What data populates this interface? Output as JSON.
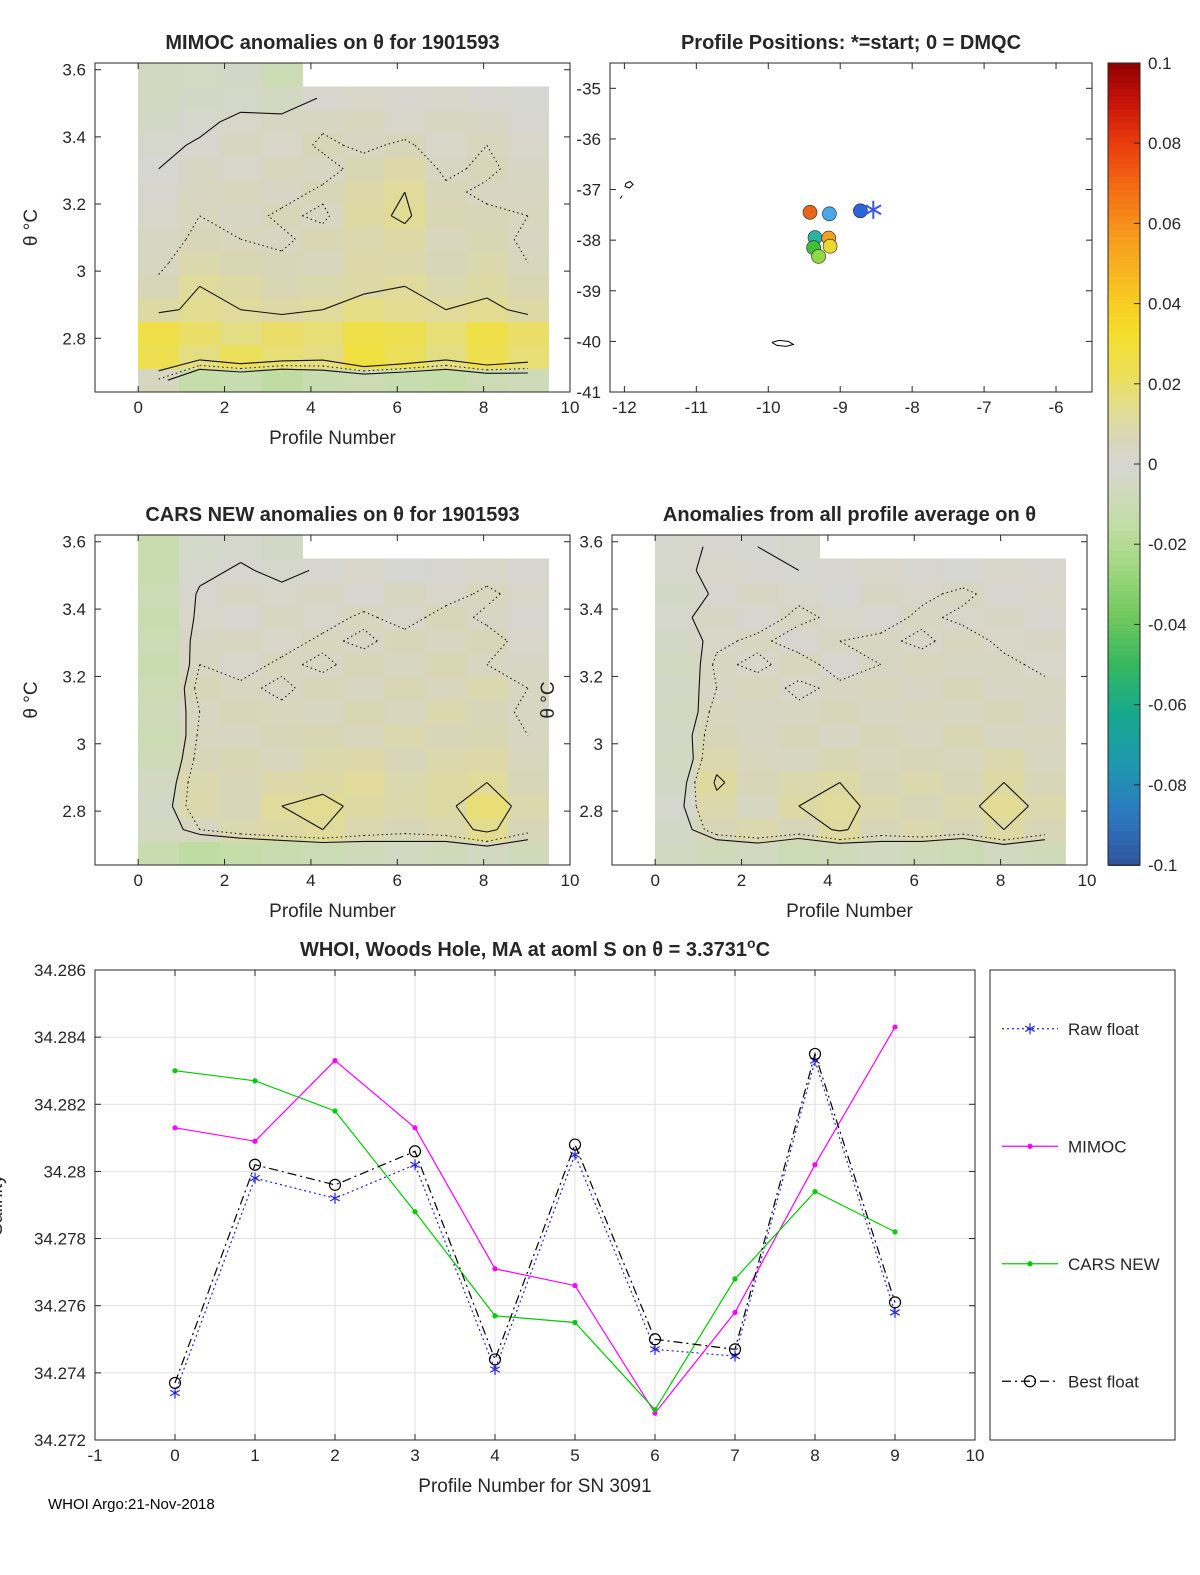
{
  "figure": {
    "footer": "WHOI Argo:21-Nov-2018",
    "background": "#ffffff"
  },
  "colormap": {
    "stops": [
      [
        -0.1,
        "#30559c"
      ],
      [
        -0.088,
        "#2d77c0"
      ],
      [
        -0.075,
        "#1f98b0"
      ],
      [
        -0.062,
        "#16a98c"
      ],
      [
        -0.05,
        "#36b75e"
      ],
      [
        -0.038,
        "#72c95e"
      ],
      [
        -0.025,
        "#a4d783"
      ],
      [
        -0.015,
        "#c2dda6"
      ],
      [
        -0.006,
        "#d2d9c0"
      ],
      [
        0.0,
        "#d6d6d2"
      ],
      [
        0.006,
        "#d8d6b8"
      ],
      [
        0.014,
        "#e2dc90"
      ],
      [
        0.022,
        "#ecdf5a"
      ],
      [
        0.032,
        "#f4df2e"
      ],
      [
        0.042,
        "#f8c822"
      ],
      [
        0.055,
        "#f8a01e"
      ],
      [
        0.068,
        "#f47014"
      ],
      [
        0.08,
        "#e83c0e"
      ],
      [
        0.09,
        "#c81408"
      ],
      [
        0.1,
        "#8e0000"
      ]
    ],
    "tick_vals": [
      0.1,
      0.08,
      0.06,
      0.04,
      0.02,
      0,
      -0.02,
      -0.04,
      -0.06,
      -0.08,
      -0.1
    ],
    "tick_labels": [
      "0.1",
      "0.08",
      "0.06",
      "0.04",
      "0.02",
      "0",
      "-0.02",
      "-0.04",
      "-0.06",
      "-0.08",
      "-0.1"
    ]
  },
  "chart_data": [
    {
      "id": "mimoc_heatmap",
      "type": "heatmap",
      "title": "MIMOC anomalies on θ  for 1901593",
      "xlabel": "Profile Number",
      "ylabel": "θ °C",
      "xlim": [
        -1,
        10
      ],
      "ylim": [
        2.64,
        3.62
      ],
      "xtick_vals": [
        0,
        2,
        4,
        6,
        8,
        10
      ],
      "xtick_labels": [
        "0",
        "2",
        "4",
        "6",
        "8",
        "10"
      ],
      "ytick_vals": [
        2.8,
        3,
        3.2,
        3.4,
        3.6
      ],
      "ytick_labels": [
        "2.8",
        "3",
        "3.2",
        "3.4",
        "3.6"
      ],
      "cell_x0": 0,
      "cell_dx": 0.95,
      "cell_y0": 2.64,
      "cell_dy": 0.07,
      "contour_levels_solid": [
        0,
        0.012
      ],
      "contour_levels_dotted": [
        0.005
      ],
      "values": [
        [
          0.004,
          -0.014,
          -0.012,
          -0.016,
          -0.012,
          -0.01,
          -0.012,
          -0.014,
          -0.01,
          -0.008
        ],
        [
          0.024,
          0.016,
          0.022,
          0.018,
          0.016,
          0.028,
          0.022,
          0.016,
          0.024,
          0.018
        ],
        [
          0.026,
          0.02,
          0.016,
          0.02,
          0.018,
          0.026,
          0.024,
          0.018,
          0.026,
          0.02
        ],
        [
          0.01,
          0.014,
          0.012,
          0.01,
          0.012,
          0.016,
          0.014,
          0.012,
          0.014,
          0.01
        ],
        [
          0.006,
          0.012,
          0.01,
          0.007,
          0.008,
          0.01,
          0.012,
          0.008,
          0.01,
          0.007
        ],
        [
          0.004,
          0.008,
          0.007,
          0.006,
          0.005,
          0.009,
          0.008,
          0.006,
          0.008,
          0.005
        ],
        [
          0.003,
          0.006,
          0.005,
          0.004,
          0.007,
          0.008,
          0.01,
          0.005,
          0.007,
          0.004
        ],
        [
          0.002,
          0.005,
          0.003,
          0.006,
          0.004,
          0.01,
          0.013,
          0.007,
          0.006,
          0.005
        ],
        [
          0.001,
          0.004,
          0.005,
          0.003,
          0.006,
          0.009,
          0.012,
          0.006,
          0.004,
          0.004
        ],
        [
          0.0,
          0.003,
          0.002,
          0.005,
          0.003,
          0.007,
          0.009,
          0.004,
          0.006,
          0.003
        ],
        [
          -0.002,
          0.001,
          0.004,
          0.002,
          0.006,
          0.004,
          0.006,
          0.002,
          0.005,
          0.002
        ],
        [
          -0.004,
          -0.002,
          0.002,
          0.003,
          0.004,
          0.005,
          0.002,
          0.004,
          0.003,
          0.001
        ],
        [
          -0.006,
          -0.004,
          -0.003,
          -0.006,
          0.001,
          0.002,
          0.001,
          0.002,
          0.001,
          0.0
        ],
        [
          -0.006,
          -0.005,
          -0.004,
          -0.01,
          null,
          null,
          null,
          null,
          null,
          null
        ]
      ]
    },
    {
      "id": "profile_map",
      "type": "scatter",
      "title": "Profile Positions: *=start; 0 = DMQC",
      "xlim": [
        -12.2,
        -5.5
      ],
      "ylim": [
        -41,
        -34.5
      ],
      "xtick_vals": [
        -12,
        -11,
        -10,
        -9,
        -8,
        -7,
        -6
      ],
      "xtick_labels": [
        "-12",
        "-11",
        "-10",
        "-9",
        "-8",
        "-7",
        "-6"
      ],
      "ytick_vals": [
        -35,
        -36,
        -37,
        -38,
        -39,
        -40,
        -41
      ],
      "ytick_labels": [
        "-35",
        "-36",
        "-37",
        "-38",
        "-39",
        "-40",
        "-41"
      ],
      "points": [
        {
          "x": -9.42,
          "y": -37.45,
          "color": "#e8641b"
        },
        {
          "x": -9.15,
          "y": -37.48,
          "color": "#49a9e8"
        },
        {
          "x": -8.72,
          "y": -37.42,
          "color": "#2a66d9"
        },
        {
          "x": -9.35,
          "y": -37.95,
          "color": "#29b3a5"
        },
        {
          "x": -9.16,
          "y": -37.96,
          "color": "#f59f1e"
        },
        {
          "x": -9.37,
          "y": -38.15,
          "color": "#3fbf3a"
        },
        {
          "x": -9.14,
          "y": -38.12,
          "color": "#e8d832"
        },
        {
          "x": -9.3,
          "y": -38.32,
          "color": "#90d944"
        }
      ],
      "start_marker": {
        "x": -8.54,
        "y": -37.4,
        "color": "#3b55e0"
      },
      "coastlines": [
        [
          [
            -11.98,
            -36.88
          ],
          [
            -11.92,
            -36.84
          ],
          [
            -11.88,
            -36.9
          ],
          [
            -11.93,
            -36.97
          ],
          [
            -11.99,
            -36.94
          ],
          [
            -11.98,
            -36.88
          ]
        ],
        [
          [
            -12.03,
            -37.12
          ],
          [
            -12.06,
            -37.18
          ]
        ],
        [
          [
            -9.95,
            -40.02
          ],
          [
            -9.85,
            -39.98
          ],
          [
            -9.72,
            -40.0
          ],
          [
            -9.65,
            -40.06
          ],
          [
            -9.75,
            -40.1
          ],
          [
            -9.88,
            -40.08
          ],
          [
            -9.95,
            -40.02
          ]
        ]
      ]
    },
    {
      "id": "cars_heatmap",
      "type": "heatmap",
      "title": "CARS NEW anomalies on θ for 1901593",
      "xlabel": "Profile Number",
      "ylabel": "θ °C",
      "xlim": [
        -1,
        10
      ],
      "ylim": [
        2.64,
        3.62
      ],
      "xtick_vals": [
        0,
        2,
        4,
        6,
        8,
        10
      ],
      "xtick_labels": [
        "0",
        "2",
        "4",
        "6",
        "8",
        "10"
      ],
      "ytick_vals": [
        2.8,
        3,
        3.2,
        3.4,
        3.6
      ],
      "ytick_labels": [
        "2.8",
        "3",
        "3.2",
        "3.4",
        "3.6"
      ],
      "cell_x0": 0,
      "cell_dx": 0.95,
      "cell_y0": 2.64,
      "cell_dy": 0.07,
      "contour_levels_solid": [
        0,
        0.012
      ],
      "contour_levels_dotted": [
        0.004
      ],
      "values": [
        [
          -0.012,
          -0.016,
          -0.014,
          -0.012,
          -0.01,
          -0.008,
          -0.006,
          -0.008,
          -0.006,
          -0.008
        ],
        [
          -0.006,
          0.004,
          0.008,
          0.01,
          0.012,
          0.008,
          0.006,
          0.008,
          0.014,
          0.006
        ],
        [
          -0.004,
          0.008,
          0.006,
          0.012,
          0.014,
          0.01,
          0.008,
          0.01,
          0.018,
          0.008
        ],
        [
          -0.006,
          0.008,
          0.006,
          0.009,
          0.01,
          0.012,
          0.008,
          0.01,
          0.012,
          0.006
        ],
        [
          -0.008,
          0.006,
          0.007,
          0.005,
          0.008,
          0.009,
          0.006,
          0.008,
          0.009,
          0.005
        ],
        [
          -0.01,
          0.005,
          0.004,
          0.006,
          0.007,
          0.005,
          0.008,
          0.006,
          0.007,
          0.004
        ],
        [
          -0.008,
          0.004,
          0.006,
          0.005,
          0.004,
          0.007,
          0.005,
          0.008,
          0.006,
          0.003
        ],
        [
          -0.01,
          0.006,
          0.005,
          0.003,
          0.006,
          0.004,
          0.007,
          0.005,
          0.008,
          0.004
        ],
        [
          -0.012,
          0.004,
          0.002,
          0.005,
          0.003,
          0.006,
          0.004,
          0.007,
          0.004,
          0.003
        ],
        [
          -0.01,
          0.003,
          0.004,
          0.002,
          0.005,
          0.003,
          0.006,
          0.004,
          0.006,
          0.002
        ],
        [
          -0.012,
          0.002,
          0.001,
          0.004,
          0.002,
          0.005,
          0.002,
          0.006,
          0.003,
          0.001
        ],
        [
          -0.01,
          0.001,
          0.003,
          0.002,
          0.003,
          0.001,
          0.004,
          0.002,
          0.005,
          0.002
        ],
        [
          -0.012,
          -0.002,
          0.001,
          -0.002,
          0.001,
          0.002,
          0.0,
          0.001,
          0.002,
          0.001
        ],
        [
          -0.012,
          -0.003,
          -0.002,
          -0.004,
          null,
          null,
          null,
          null,
          null,
          null
        ]
      ]
    },
    {
      "id": "avg_heatmap",
      "type": "heatmap",
      "title": "Anomalies from all profile average on θ",
      "xlabel": "Profile Number",
      "ylabel": "θ °C",
      "xlim": [
        -1,
        10
      ],
      "ylim": [
        2.64,
        3.62
      ],
      "xtick_vals": [
        0,
        2,
        4,
        6,
        8,
        10
      ],
      "xtick_labels": [
        "0",
        "2",
        "4",
        "6",
        "8",
        "10"
      ],
      "ytick_vals": [
        2.8,
        3,
        3.2,
        3.4,
        3.6
      ],
      "ytick_labels": [
        "2.8",
        "3",
        "3.2",
        "3.4",
        "3.6"
      ],
      "cell_x0": 0,
      "cell_dx": 0.95,
      "cell_y0": 2.64,
      "cell_dy": 0.07,
      "contour_levels_solid": [
        0,
        0.01
      ],
      "contour_levels_dotted": [
        0.003
      ],
      "values": [
        [
          -0.006,
          -0.008,
          -0.006,
          -0.01,
          -0.008,
          -0.006,
          -0.008,
          -0.01,
          -0.006,
          -0.008
        ],
        [
          -0.004,
          0.006,
          0.008,
          0.006,
          0.011,
          0.006,
          0.008,
          0.006,
          0.01,
          0.006
        ],
        [
          -0.002,
          0.008,
          0.004,
          0.01,
          0.012,
          0.008,
          0.006,
          0.008,
          0.013,
          0.008
        ],
        [
          -0.004,
          0.011,
          0.006,
          0.008,
          0.01,
          0.006,
          0.008,
          0.006,
          0.01,
          0.006
        ],
        [
          -0.006,
          0.008,
          0.005,
          0.004,
          0.007,
          0.005,
          0.006,
          0.005,
          0.008,
          0.004
        ],
        [
          -0.004,
          0.006,
          0.004,
          0.006,
          0.003,
          0.006,
          0.004,
          0.007,
          0.004,
          0.005
        ],
        [
          -0.006,
          0.005,
          0.003,
          0.004,
          0.006,
          0.003,
          0.005,
          0.004,
          0.006,
          0.003
        ],
        [
          -0.004,
          0.003,
          0.005,
          0.002,
          0.004,
          0.005,
          0.003,
          0.006,
          0.003,
          0.004
        ],
        [
          -0.006,
          0.004,
          0.002,
          0.005,
          0.001,
          0.003,
          0.005,
          0.003,
          0.004,
          0.002
        ],
        [
          -0.004,
          0.002,
          0.004,
          0.001,
          0.003,
          0.004,
          0.002,
          0.005,
          0.002,
          0.003
        ],
        [
          -0.002,
          0.003,
          0.001,
          0.004,
          0.002,
          0.001,
          0.004,
          0.002,
          0.003,
          0.001
        ],
        [
          -0.004,
          0.001,
          0.003,
          0.002,
          0.0,
          0.003,
          0.002,
          0.004,
          0.001,
          0.002
        ],
        [
          -0.002,
          0.002,
          0.001,
          0.0,
          0.001,
          0.002,
          0.001,
          0.0,
          0.002,
          0.001
        ],
        [
          -0.002,
          0.001,
          0.0,
          -0.002,
          null,
          null,
          null,
          null,
          null,
          null
        ]
      ]
    },
    {
      "id": "salinity_lines",
      "type": "line",
      "title_main": "WHOI, Woods Hole, MA at aoml S on θ = 3.3731",
      "title_sup": "o",
      "title_end": "C",
      "xlabel": "Profile Number for SN 3091",
      "ylabel": "Salinity",
      "xlim": [
        -1,
        10
      ],
      "ylim": [
        34.272,
        34.286
      ],
      "xtick_vals": [
        -1,
        0,
        1,
        2,
        3,
        4,
        5,
        6,
        7,
        8,
        9,
        10
      ],
      "xtick_labels": [
        "-1",
        "0",
        "1",
        "2",
        "3",
        "4",
        "5",
        "6",
        "7",
        "8",
        "9",
        "10"
      ],
      "ytick_vals": [
        34.272,
        34.274,
        34.276,
        34.278,
        34.28,
        34.282,
        34.284,
        34.286
      ],
      "ytick_labels": [
        "34.272",
        "34.274",
        "34.276",
        "34.278",
        "34.28",
        "34.282",
        "34.284",
        "34.286"
      ],
      "x": [
        0,
        1,
        2,
        3,
        4,
        5,
        6,
        7,
        8,
        9
      ],
      "series": [
        {
          "name": "Raw float",
          "color": "#2222dd",
          "line_style": "dotted",
          "marker": "asterisk",
          "values": [
            34.2734,
            34.2798,
            34.2792,
            34.2802,
            34.2741,
            34.2805,
            34.2747,
            34.2745,
            34.2833,
            34.2758
          ]
        },
        {
          "name": "MIMOC",
          "color": "#ff00ff",
          "line_style": "solid",
          "marker": "dot",
          "values": [
            34.2813,
            34.2809,
            34.2833,
            34.2813,
            34.2771,
            34.2766,
            34.2728,
            34.2758,
            34.2802,
            34.2843
          ]
        },
        {
          "name": "CARS NEW",
          "color": "#00cc00",
          "line_style": "solid",
          "marker": "dot",
          "values": [
            34.283,
            34.2827,
            34.2818,
            34.2788,
            34.2757,
            34.2755,
            34.2729,
            34.2768,
            34.2794,
            34.2782
          ]
        },
        {
          "name": "Best float",
          "color": "#000000",
          "line_style": "dashdot",
          "marker": "circle",
          "values": [
            34.2737,
            34.2802,
            34.2796,
            34.2806,
            34.2744,
            34.2808,
            34.275,
            34.2747,
            34.2835,
            34.2761
          ]
        }
      ],
      "legend": [
        "Raw float",
        "MIMOC",
        "CARS NEW",
        "Best float"
      ]
    }
  ]
}
